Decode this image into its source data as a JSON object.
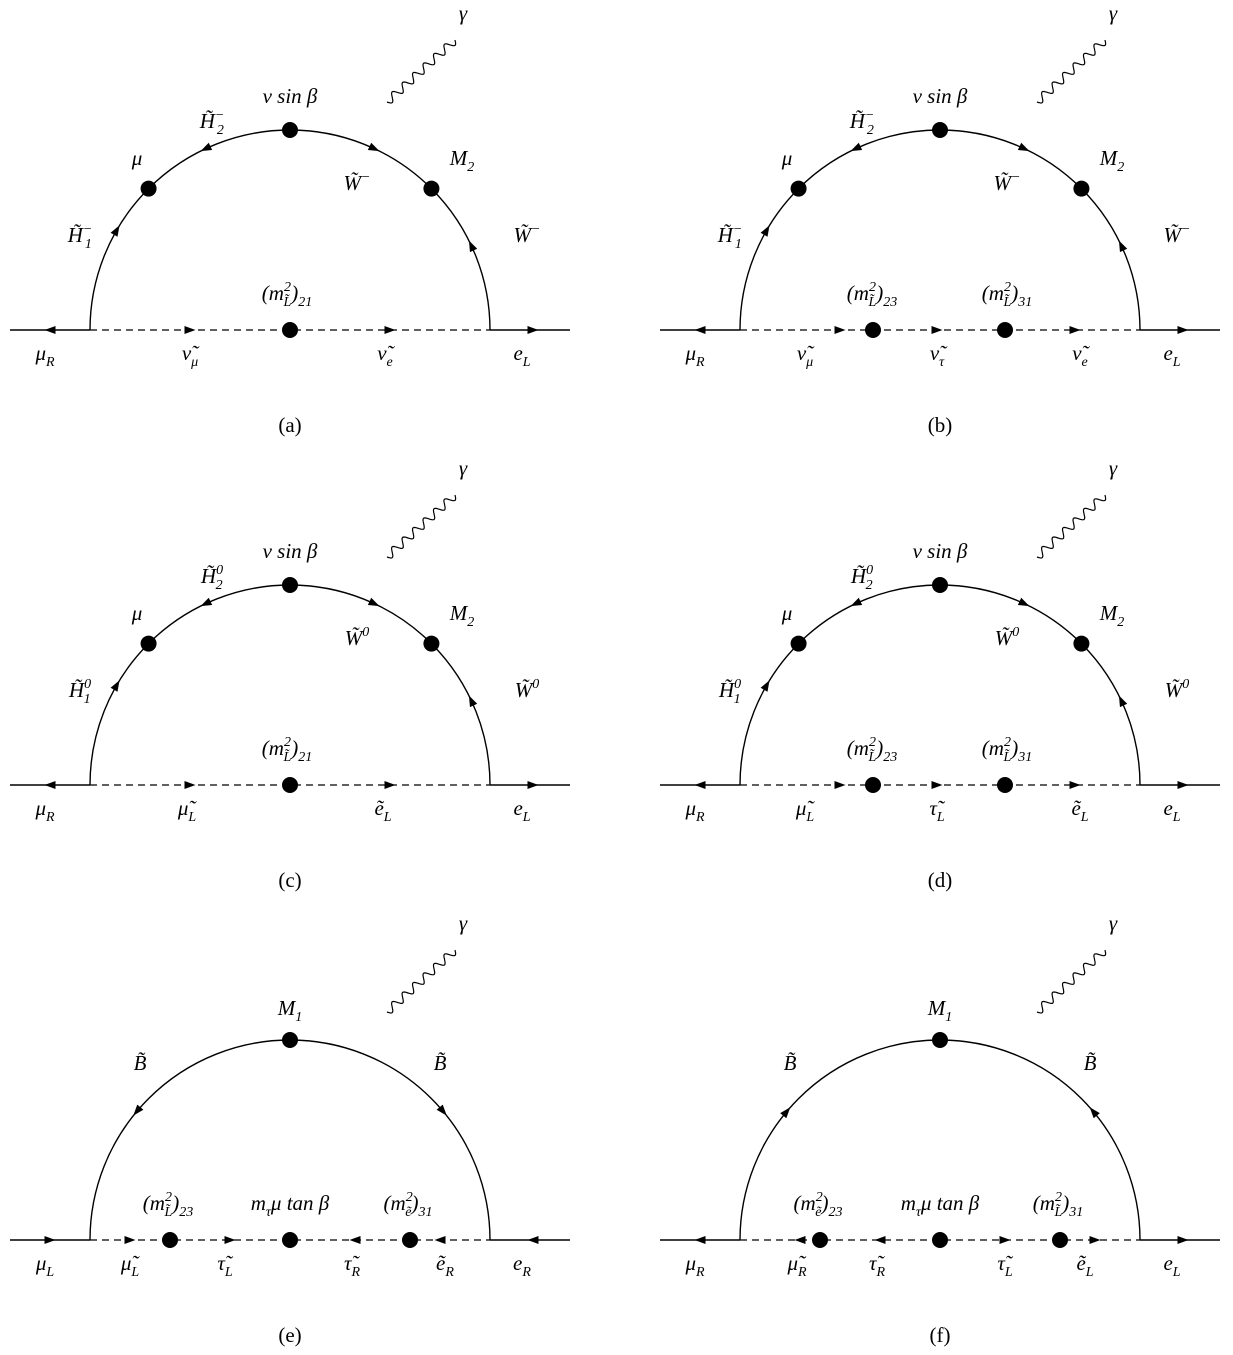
{
  "diagrams": [
    {
      "caption": "(a)",
      "photon": "γ",
      "labels": [
        [
          {
            "text": "μ"
          },
          {
            "text": "R",
            "pos": "sub"
          }
        ],
        [
          {
            "text": "ν̃"
          },
          {
            "text": "μ",
            "pos": "sub"
          }
        ],
        [
          {
            "text": "ν̃"
          },
          {
            "text": "e",
            "pos": "sub"
          }
        ],
        [
          {
            "text": "e"
          },
          {
            "text": "L",
            "pos": "sub"
          }
        ],
        [
          {
            "text": "(m"
          },
          {
            "text": "2",
            "pos": "sup"
          },
          {
            "text": "L̃",
            "pos": "sub"
          },
          {
            "text": ")"
          },
          {
            "text": "21",
            "pos": "sub"
          }
        ],
        [
          {
            "text": "H̃"
          },
          {
            "text": "−",
            "pos": "sup"
          },
          {
            "text": "1",
            "pos": "sub"
          }
        ],
        [
          {
            "text": "μ"
          }
        ],
        [
          {
            "text": "H̃"
          },
          {
            "text": "−",
            "pos": "sup"
          },
          {
            "text": "2",
            "pos": "sub"
          }
        ],
        [
          {
            "text": "v sin β"
          }
        ],
        [
          {
            "text": "W̃"
          },
          {
            "text": "−",
            "pos": "sup"
          }
        ],
        [
          {
            "text": "M"
          },
          {
            "text": "2",
            "pos": "sub"
          }
        ],
        [
          {
            "text": "W̃"
          },
          {
            "text": "−",
            "pos": "sup"
          }
        ]
      ]
    },
    {
      "caption": "(b)",
      "photon": "γ",
      "labels": [
        [
          {
            "text": "μ"
          },
          {
            "text": "R",
            "pos": "sub"
          }
        ],
        [
          {
            "text": "ν̃"
          },
          {
            "text": "μ",
            "pos": "sub"
          }
        ],
        [
          {
            "text": "(m"
          },
          {
            "text": "2",
            "pos": "sup"
          },
          {
            "text": "L̃",
            "pos": "sub"
          },
          {
            "text": ")"
          },
          {
            "text": "23",
            "pos": "sub"
          }
        ],
        [
          {
            "text": "ν̃"
          },
          {
            "text": "τ",
            "pos": "sub"
          }
        ],
        [
          {
            "text": "(m"
          },
          {
            "text": "2",
            "pos": "sup"
          },
          {
            "text": "L̃",
            "pos": "sub"
          },
          {
            "text": ")"
          },
          {
            "text": "31",
            "pos": "sub"
          }
        ],
        [
          {
            "text": "ν̃"
          },
          {
            "text": "e",
            "pos": "sub"
          }
        ],
        [
          {
            "text": "e"
          },
          {
            "text": "L",
            "pos": "sub"
          }
        ],
        [
          {
            "text": "H̃"
          },
          {
            "text": "−",
            "pos": "sup"
          },
          {
            "text": "1",
            "pos": "sub"
          }
        ],
        [
          {
            "text": "μ"
          }
        ],
        [
          {
            "text": "H̃"
          },
          {
            "text": "−",
            "pos": "sup"
          },
          {
            "text": "2",
            "pos": "sub"
          }
        ],
        [
          {
            "text": "v sin β"
          }
        ],
        [
          {
            "text": "W̃"
          },
          {
            "text": "−",
            "pos": "sup"
          }
        ],
        [
          {
            "text": "M"
          },
          {
            "text": "2",
            "pos": "sub"
          }
        ],
        [
          {
            "text": "W̃"
          },
          {
            "text": "−",
            "pos": "sup"
          }
        ]
      ]
    },
    {
      "caption": "(c)",
      "photon": "γ",
      "labels": [
        [
          {
            "text": "μ"
          },
          {
            "text": "R",
            "pos": "sub"
          }
        ],
        [
          {
            "text": "μ̃"
          },
          {
            "text": "L",
            "pos": "sub"
          }
        ],
        [
          {
            "text": "ẽ"
          },
          {
            "text": "L",
            "pos": "sub"
          }
        ],
        [
          {
            "text": "e"
          },
          {
            "text": "L",
            "pos": "sub"
          }
        ],
        [
          {
            "text": "(m"
          },
          {
            "text": "2",
            "pos": "sup"
          },
          {
            "text": "L̃",
            "pos": "sub"
          },
          {
            "text": ")"
          },
          {
            "text": "21",
            "pos": "sub"
          }
        ],
        [
          {
            "text": "H̃"
          },
          {
            "text": "0",
            "pos": "sup"
          },
          {
            "text": "1",
            "pos": "sub"
          }
        ],
        [
          {
            "text": "μ"
          }
        ],
        [
          {
            "text": "H̃"
          },
          {
            "text": "0",
            "pos": "sup"
          },
          {
            "text": "2",
            "pos": "sub"
          }
        ],
        [
          {
            "text": "v sin β"
          }
        ],
        [
          {
            "text": "W̃"
          },
          {
            "text": "0",
            "pos": "sup"
          }
        ],
        [
          {
            "text": "M"
          },
          {
            "text": "2",
            "pos": "sub"
          }
        ],
        [
          {
            "text": "W̃"
          },
          {
            "text": "0",
            "pos": "sup"
          }
        ]
      ]
    },
    {
      "caption": "(d)",
      "photon": "γ",
      "labels": [
        [
          {
            "text": "μ"
          },
          {
            "text": "R",
            "pos": "sub"
          }
        ],
        [
          {
            "text": "μ̃"
          },
          {
            "text": "L",
            "pos": "sub"
          }
        ],
        [
          {
            "text": "(m"
          },
          {
            "text": "2",
            "pos": "sup"
          },
          {
            "text": "L̃",
            "pos": "sub"
          },
          {
            "text": ")"
          },
          {
            "text": "23",
            "pos": "sub"
          }
        ],
        [
          {
            "text": "τ̃"
          },
          {
            "text": "L",
            "pos": "sub"
          }
        ],
        [
          {
            "text": "(m"
          },
          {
            "text": "2",
            "pos": "sup"
          },
          {
            "text": "L̃",
            "pos": "sub"
          },
          {
            "text": ")"
          },
          {
            "text": "31",
            "pos": "sub"
          }
        ],
        [
          {
            "text": "ẽ"
          },
          {
            "text": "L",
            "pos": "sub"
          }
        ],
        [
          {
            "text": "e"
          },
          {
            "text": "L",
            "pos": "sub"
          }
        ],
        [
          {
            "text": "H̃"
          },
          {
            "text": "0",
            "pos": "sup"
          },
          {
            "text": "1",
            "pos": "sub"
          }
        ],
        [
          {
            "text": "μ"
          }
        ],
        [
          {
            "text": "H̃"
          },
          {
            "text": "0",
            "pos": "sup"
          },
          {
            "text": "2",
            "pos": "sub"
          }
        ],
        [
          {
            "text": "v sin β"
          }
        ],
        [
          {
            "text": "W̃"
          },
          {
            "text": "0",
            "pos": "sup"
          }
        ],
        [
          {
            "text": "M"
          },
          {
            "text": "2",
            "pos": "sub"
          }
        ],
        [
          {
            "text": "W̃"
          },
          {
            "text": "0",
            "pos": "sup"
          }
        ]
      ]
    },
    {
      "caption": "(e)",
      "photon": "γ",
      "labels": [
        [
          {
            "text": "μ"
          },
          {
            "text": "L",
            "pos": "sub"
          }
        ],
        [
          {
            "text": "μ̃"
          },
          {
            "text": "L",
            "pos": "sub"
          }
        ],
        [
          {
            "text": "(m"
          },
          {
            "text": "2",
            "pos": "sup"
          },
          {
            "text": "L̃",
            "pos": "sub"
          },
          {
            "text": ")"
          },
          {
            "text": "23",
            "pos": "sub"
          }
        ],
        [
          {
            "text": "τ̃"
          },
          {
            "text": "L",
            "pos": "sub"
          }
        ],
        [
          {
            "text": "m"
          },
          {
            "text": "τ",
            "pos": "sub"
          },
          {
            "text": "μ tan β"
          }
        ],
        [
          {
            "text": "τ̃"
          },
          {
            "text": "R",
            "pos": "sub"
          }
        ],
        [
          {
            "text": "(m"
          },
          {
            "text": "2",
            "pos": "sup"
          },
          {
            "text": "ẽ",
            "pos": "sub"
          },
          {
            "text": ")"
          },
          {
            "text": "31",
            "pos": "sub"
          }
        ],
        [
          {
            "text": "ẽ"
          },
          {
            "text": "R",
            "pos": "sub"
          }
        ],
        [
          {
            "text": "e"
          },
          {
            "text": "R",
            "pos": "sub"
          }
        ],
        [
          {
            "text": "B̃"
          }
        ],
        [
          {
            "text": "M"
          },
          {
            "text": "1",
            "pos": "sub"
          }
        ],
        [
          {
            "text": "B̃"
          }
        ]
      ]
    },
    {
      "caption": "(f)",
      "photon": "γ",
      "labels": [
        [
          {
            "text": "μ"
          },
          {
            "text": "R",
            "pos": "sub"
          }
        ],
        [
          {
            "text": "μ̃"
          },
          {
            "text": "R",
            "pos": "sub"
          }
        ],
        [
          {
            "text": "(m"
          },
          {
            "text": "2",
            "pos": "sup"
          },
          {
            "text": "ẽ",
            "pos": "sub"
          },
          {
            "text": ")"
          },
          {
            "text": "23",
            "pos": "sub"
          }
        ],
        [
          {
            "text": "τ̃"
          },
          {
            "text": "R",
            "pos": "sub"
          }
        ],
        [
          {
            "text": "m"
          },
          {
            "text": "τ",
            "pos": "sub"
          },
          {
            "text": "μ tan β"
          }
        ],
        [
          {
            "text": "τ̃"
          },
          {
            "text": "L",
            "pos": "sub"
          }
        ],
        [
          {
            "text": "(m"
          },
          {
            "text": "2",
            "pos": "sup"
          },
          {
            "text": "L̃",
            "pos": "sub"
          },
          {
            "text": ")"
          },
          {
            "text": "31",
            "pos": "sub"
          }
        ],
        [
          {
            "text": "ẽ"
          },
          {
            "text": "L",
            "pos": "sub"
          }
        ],
        [
          {
            "text": "e"
          },
          {
            "text": "L",
            "pos": "sub"
          }
        ],
        [
          {
            "text": "B̃"
          }
        ],
        [
          {
            "text": "M"
          },
          {
            "text": "1",
            "pos": "sub"
          }
        ],
        [
          {
            "text": "B̃"
          }
        ]
      ]
    }
  ]
}
